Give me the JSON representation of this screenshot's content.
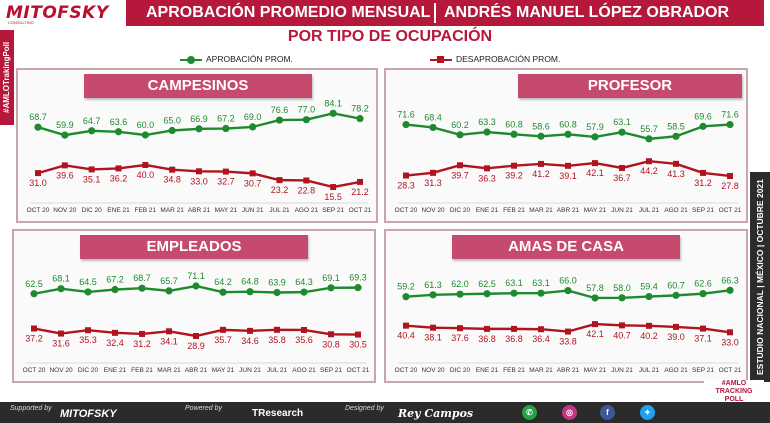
{
  "header": {
    "logo": "MITOFSKY",
    "logo_sub": "CONSULTING",
    "title_left": "APROBACIÓN PROMEDIO MENSUAL",
    "title_right": "ANDRÉS MANUEL LÓPEZ OBRADOR",
    "side_tag": "#AMLOTrakingPoll",
    "subtitle": "POR TIPO DE OCUPACIÓN"
  },
  "legend": {
    "approval": "APROBACIÓN PROM.",
    "disapproval": "DESAPROBACIÓN PROM.",
    "approval_color": "#1e8a2e",
    "disapproval_color": "#b0141e"
  },
  "side_right": "ESTUDIO NACIONAL  |  MÉXICO  |  OCTUBRE 2021",
  "footer": {
    "supported_by": "Supported by",
    "supported_name": "MITOFSKY",
    "powered_by": "Powered by",
    "powered_name": "TResearch",
    "designed_by": "Designed by",
    "designed_name": "Rey Campos",
    "badge_line1": "#AMLO",
    "badge_line2": "TRACKING",
    "badge_line3": "POLL",
    "social": [
      "whatsapp-icon",
      "instagram-icon",
      "facebook-icon",
      "twitter-icon"
    ]
  },
  "chart_data": [
    {
      "type": "line",
      "title": "CAMPESINOS",
      "categories": [
        "OCT 20",
        "NOV 20",
        "DIC 20",
        "ENE 21",
        "FEB 21",
        "MAR 21",
        "ABR 21",
        "MAY 21",
        "JUN 21",
        "JUL 21",
        "AGO 21",
        "SEP 21",
        "OCT 21"
      ],
      "series": [
        {
          "name": "APROBACIÓN PROM.",
          "values": [
            68.7,
            59.9,
            64.7,
            63.6,
            60.0,
            65.0,
            66.9,
            67.2,
            69.0,
            76.6,
            77.0,
            84.1,
            78.2
          ]
        },
        {
          "name": "DESAPROBACIÓN PROM.",
          "values": [
            31.0,
            39.6,
            35.1,
            36.2,
            40.0,
            34.8,
            33.0,
            32.7,
            30.7,
            23.2,
            22.8,
            15.5,
            21.2
          ]
        }
      ]
    },
    {
      "type": "line",
      "title": "PROFESOR",
      "categories": [
        "OCT 20",
        "NOV 20",
        "DIC 20",
        "ENE 21",
        "FEB 21",
        "MAR 21",
        "ABR 21",
        "MAY 21",
        "JUN 21",
        "JUL 21",
        "AGO 21",
        "SEP 21",
        "OCT 21"
      ],
      "series": [
        {
          "name": "APROBACIÓN PROM.",
          "values": [
            71.6,
            68.4,
            60.2,
            63.3,
            60.8,
            58.6,
            60.8,
            57.9,
            63.1,
            55.7,
            58.5,
            69.6,
            71.6
          ]
        },
        {
          "name": "DESAPROBACIÓN PROM.",
          "values": [
            28.3,
            31.3,
            39.7,
            36.3,
            39.2,
            41.2,
            39.1,
            42.1,
            36.7,
            44.2,
            41.3,
            31.2,
            27.8
          ]
        }
      ]
    },
    {
      "type": "line",
      "title": "EMPLEADOS",
      "categories": [
        "OCT 20",
        "NOV 20",
        "DIC 20",
        "ENE 21",
        "FEB 21",
        "MAR 21",
        "ABR 21",
        "MAY 21",
        "JUN 21",
        "JUL 21",
        "AGO 21",
        "SEP 21",
        "OCT 21"
      ],
      "series": [
        {
          "name": "APROBACIÓN PROM.",
          "values": [
            62.5,
            68.1,
            64.5,
            67.2,
            68.7,
            65.7,
            71.1,
            64.2,
            64.8,
            63.9,
            64.3,
            69.1,
            69.3
          ]
        },
        {
          "name": "DESAPROBACIÓN PROM.",
          "values": [
            37.2,
            31.6,
            35.3,
            32.4,
            31.2,
            34.1,
            28.9,
            35.7,
            34.6,
            35.8,
            35.6,
            30.8,
            30.5
          ]
        }
      ]
    },
    {
      "type": "line",
      "title": "AMAS DE CASA",
      "categories": [
        "OCT 20",
        "NOV 20",
        "DIC 20",
        "ENE 21",
        "FEB 21",
        "MAR 21",
        "ABR 21",
        "MAY 21",
        "JUN 21",
        "JUL 21",
        "AGO 21",
        "SEP 21",
        "OCT 21"
      ],
      "series": [
        {
          "name": "APROBACIÓN PROM.",
          "values": [
            59.2,
            61.3,
            62.0,
            62.5,
            63.1,
            63.1,
            66.0,
            57.8,
            58.0,
            59.4,
            60.7,
            62.6,
            66.3
          ]
        },
        {
          "name": "DESAPROBACIÓN PROM.",
          "values": [
            40.4,
            38.1,
            37.6,
            36.8,
            36.8,
            36.4,
            33.8,
            42.1,
            40.7,
            40.2,
            39.0,
            37.1,
            33.0
          ]
        }
      ]
    }
  ]
}
